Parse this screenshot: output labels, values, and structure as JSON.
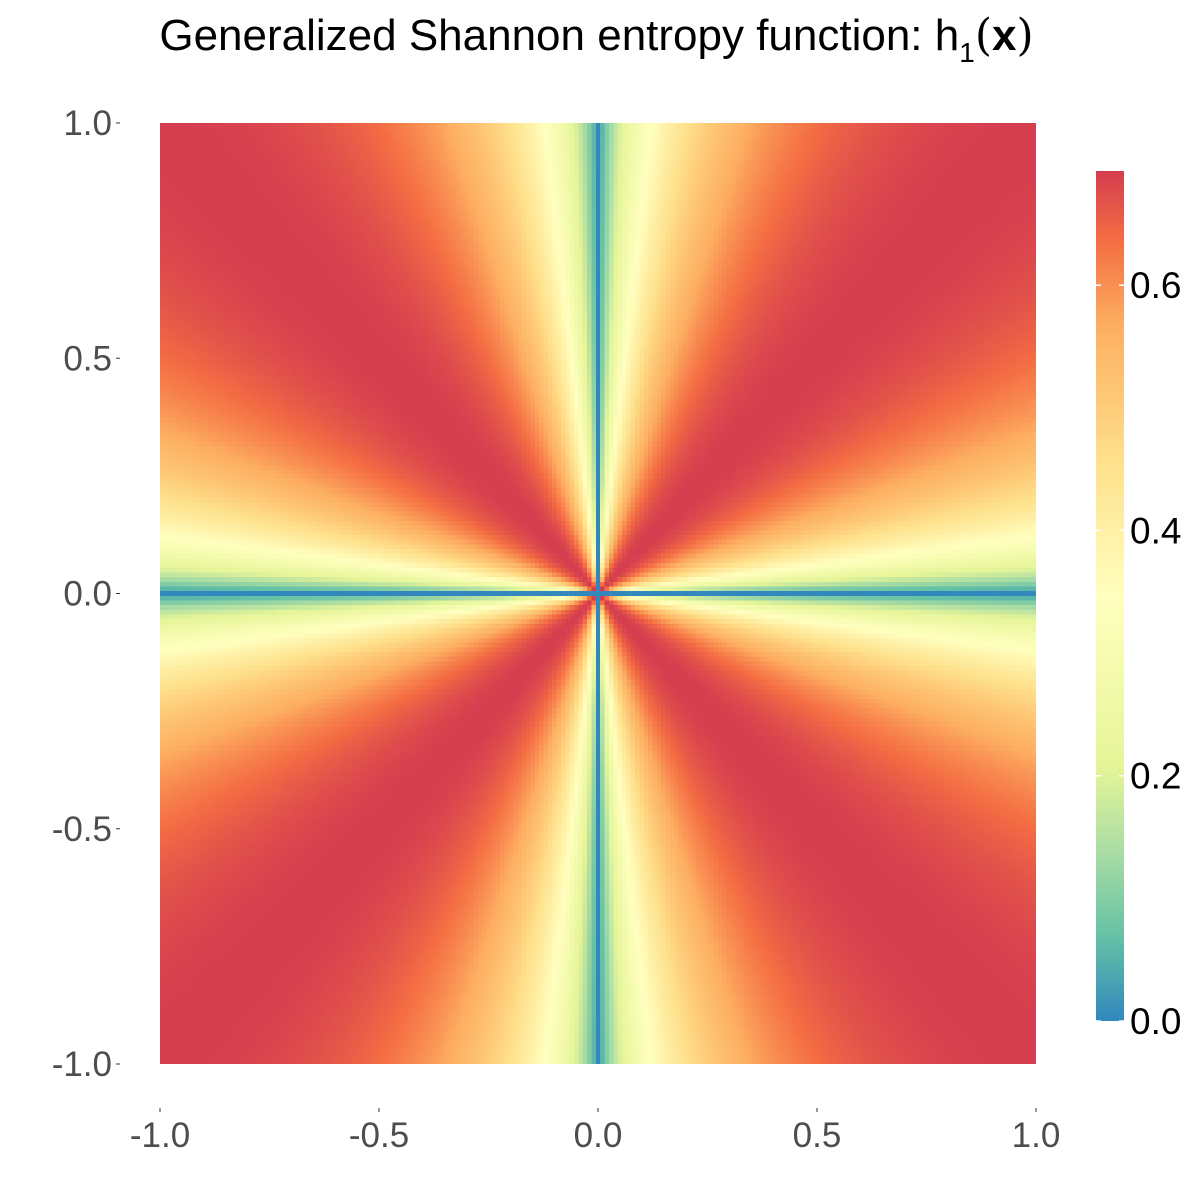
{
  "chart_data": {
    "type": "heatmap",
    "title": {
      "main": "Generalized Shannon entropy function: h",
      "subscript": "1",
      "arg_open": "(",
      "arg": "x",
      "arg_close": ")"
    },
    "xlabel": "",
    "ylabel": "",
    "xlim": [
      -1.0,
      1.0
    ],
    "ylim": [
      -1.0,
      1.0
    ],
    "x_ticks": [
      {
        "value": -1.0,
        "label": "-1.0"
      },
      {
        "value": -0.5,
        "label": "-0.5"
      },
      {
        "value": 0.0,
        "label": "0.0"
      },
      {
        "value": 0.5,
        "label": "0.5"
      },
      {
        "value": 1.0,
        "label": "1.0"
      }
    ],
    "y_ticks": [
      {
        "value": -1.0,
        "label": "-1.0"
      },
      {
        "value": -0.5,
        "label": "-0.5"
      },
      {
        "value": 0.0,
        "label": "0.0"
      },
      {
        "value": 0.5,
        "label": "0.5"
      },
      {
        "value": 1.0,
        "label": "1.0"
      }
    ],
    "function": "Shannon entropy (natural log) of the normalized absolute components: p = |x|/(|x|+|y|), h = -p ln p - (1-p) ln(1-p)",
    "value_range": [
      0.0,
      0.6931
    ],
    "grid_resolution": 201,
    "colorbar": {
      "ticks": [
        {
          "value": 0.0,
          "label": "0.0"
        },
        {
          "value": 0.2,
          "label": "0.2"
        },
        {
          "value": 0.4,
          "label": "0.4"
        },
        {
          "value": 0.6,
          "label": "0.6"
        }
      ],
      "placement": "right"
    },
    "colormap": [
      {
        "t": 0.0,
        "color": "#3288bd"
      },
      {
        "t": 0.1,
        "color": "#66c2a5"
      },
      {
        "t": 0.2,
        "color": "#abdda4"
      },
      {
        "t": 0.3,
        "color": "#e6f598"
      },
      {
        "t": 0.5,
        "color": "#ffffbf"
      },
      {
        "t": 0.66,
        "color": "#fee08b"
      },
      {
        "t": 0.82,
        "color": "#fdae61"
      },
      {
        "t": 0.92,
        "color": "#f46d43"
      },
      {
        "t": 1.0,
        "color": "#d53e4f"
      }
    ],
    "grid": false,
    "tick_label_color": "#4d4d4d",
    "tick_color": "#333333"
  }
}
